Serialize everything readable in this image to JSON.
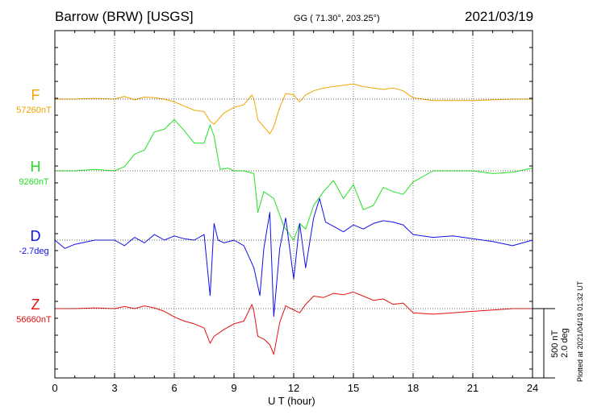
{
  "header": {
    "station": "Barrow (BRW)  [USGS]",
    "coords": "GG ( 71.30°, 203.25°)",
    "date": "2021/03/19"
  },
  "footer": {
    "scale_nt": "500 nT",
    "scale_deg": "2.0 deg",
    "plotted": "Plotted at 2021/04/19 01:32 UT"
  },
  "chart_data": {
    "type": "line",
    "xlabel": "U T (hour)",
    "xlim": [
      0,
      24
    ],
    "xticks": [
      "0",
      "3",
      "6",
      "9",
      "12",
      "15",
      "18",
      "21",
      "24"
    ],
    "grid": true,
    "series": [
      {
        "name": "F",
        "baseline": "57260nT",
        "color": "#f0a500",
        "x": [
          0,
          1,
          2,
          3,
          3.5,
          4,
          4.5,
          5,
          5.5,
          6,
          6.5,
          7,
          7.5,
          7.8,
          8,
          8.5,
          9,
          9.5,
          9.9,
          10,
          10.2,
          10.5,
          10.8,
          11,
          11.3,
          11.6,
          12,
          12.3,
          12.6,
          13,
          13.5,
          14,
          14.5,
          15,
          15.5,
          16,
          16.5,
          17,
          17.5,
          18,
          19,
          20,
          21,
          22,
          23,
          24
        ],
        "values": [
          0,
          0,
          5,
          0,
          20,
          -5,
          15,
          10,
          0,
          -20,
          -50,
          -80,
          -90,
          -160,
          -180,
          -100,
          -60,
          -40,
          30,
          0,
          -150,
          -200,
          -250,
          -200,
          -60,
          40,
          30,
          -20,
          30,
          60,
          80,
          90,
          100,
          110,
          90,
          80,
          70,
          80,
          60,
          10,
          -10,
          -10,
          -10,
          -5,
          0,
          0
        ]
      },
      {
        "name": "H",
        "baseline": "9260nT",
        "color": "#22e022",
        "x": [
          0,
          1,
          2,
          3,
          3.5,
          4,
          4.5,
          5,
          5.5,
          6,
          6.5,
          7,
          7.5,
          7.8,
          8,
          8.3,
          8.7,
          9,
          9.5,
          10,
          10.2,
          10.5,
          11,
          11.5,
          12,
          12.3,
          12.6,
          13,
          13.5,
          14,
          14.5,
          15,
          15.5,
          16,
          16.5,
          17,
          17.5,
          18,
          19,
          20,
          21,
          22,
          23,
          24
        ],
        "values": [
          0,
          0,
          10,
          0,
          30,
          120,
          150,
          280,
          300,
          370,
          290,
          200,
          200,
          330,
          250,
          10,
          20,
          0,
          0,
          -20,
          -300,
          -150,
          -200,
          -400,
          -500,
          -380,
          -420,
          -250,
          -150,
          -70,
          -200,
          -100,
          -280,
          -250,
          -120,
          -150,
          -170,
          -80,
          0,
          0,
          0,
          -20,
          -10,
          20
        ]
      },
      {
        "name": "D",
        "baseline": "-2.7deg",
        "color": "#1010e8",
        "x": [
          0,
          0.5,
          1,
          2,
          3,
          3.5,
          4,
          4.5,
          5,
          5.5,
          6,
          6.5,
          7,
          7.5,
          7.8,
          8,
          8.2,
          8.5,
          9,
          9.5,
          10,
          10.3,
          10.5,
          10.8,
          11,
          11.3,
          11.6,
          12,
          12.3,
          12.6,
          13,
          13.3,
          13.6,
          14,
          14.5,
          15,
          15.5,
          16,
          16.5,
          17,
          17.5,
          18,
          19,
          20,
          21,
          22,
          23,
          24
        ],
        "values": [
          0,
          -60,
          -30,
          0,
          0,
          -40,
          20,
          -20,
          40,
          0,
          30,
          10,
          0,
          40,
          -400,
          120,
          0,
          -20,
          0,
          -40,
          -200,
          -400,
          -60,
          200,
          -550,
          -60,
          160,
          -280,
          120,
          -200,
          160,
          300,
          130,
          100,
          60,
          110,
          80,
          120,
          140,
          130,
          110,
          40,
          20,
          30,
          10,
          -10,
          -40,
          0
        ]
      },
      {
        "name": "Z",
        "baseline": "56660nT",
        "color": "#e41010",
        "x": [
          0,
          1,
          2,
          3,
          3.5,
          4,
          4.5,
          5,
          5.5,
          6,
          6.5,
          7,
          7.5,
          7.8,
          8,
          8.5,
          9,
          9.5,
          9.9,
          10,
          10.2,
          10.5,
          10.8,
          11,
          11.3,
          11.6,
          12,
          12.3,
          12.6,
          13,
          13.5,
          14,
          14.5,
          15,
          15.5,
          16,
          16.5,
          17,
          17.5,
          18,
          19,
          20,
          21,
          22,
          23,
          24
        ],
        "values": [
          0,
          0,
          5,
          0,
          15,
          0,
          20,
          5,
          -20,
          -60,
          -90,
          -110,
          -140,
          -250,
          -200,
          -150,
          -110,
          -90,
          30,
          -20,
          -200,
          -220,
          -260,
          -330,
          -100,
          20,
          -10,
          -30,
          30,
          90,
          80,
          110,
          100,
          120,
          90,
          60,
          70,
          30,
          40,
          -30,
          -40,
          -30,
          -20,
          -10,
          0,
          0
        ]
      }
    ]
  }
}
